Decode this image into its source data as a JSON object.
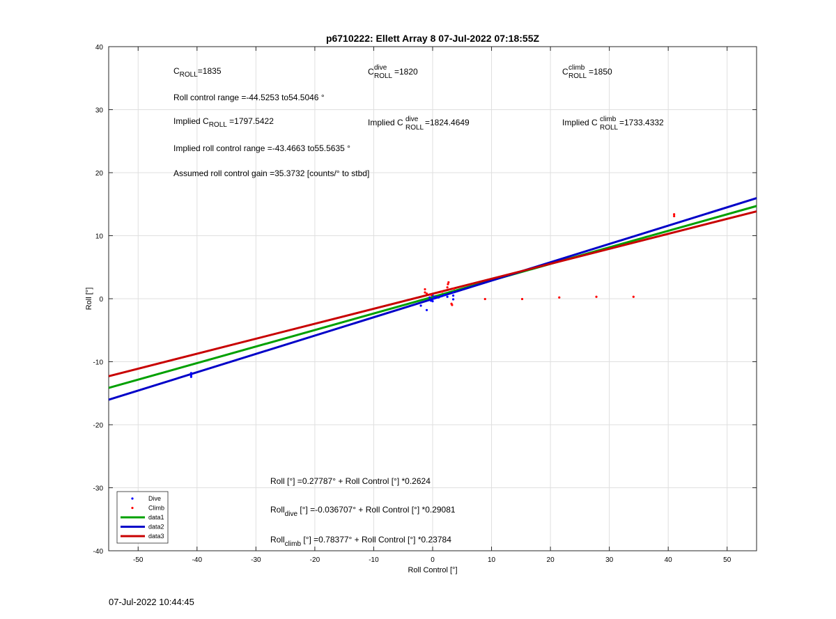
{
  "chart_data": {
    "type": "scatter",
    "title": "p6710222: Ellett Array 8 07-Jul-2022 07:18:55Z",
    "xlabel": "Roll Control [°]",
    "ylabel": "Roll [°]",
    "xlim": [
      -55,
      55
    ],
    "ylim": [
      -40,
      40
    ],
    "xticks": [
      -50,
      -40,
      -30,
      -20,
      -10,
      0,
      10,
      20,
      30,
      40,
      50
    ],
    "yticks": [
      -40,
      -30,
      -20,
      -10,
      0,
      10,
      20,
      30,
      40
    ],
    "grid": true,
    "legend_position": "bottom-left",
    "colors": {
      "dive": "#0000ff",
      "climb": "#ff0000",
      "data1": "#00a000",
      "data2": "#0000c8",
      "data3": "#c80000"
    },
    "series": [
      {
        "name": "Dive",
        "kind": "points",
        "points": [
          [
            -41,
            -12.2
          ],
          [
            -41,
            -11.8
          ],
          [
            -41,
            -12.4
          ],
          [
            -2,
            -1.1
          ],
          [
            -1,
            -1.8
          ],
          [
            -0.5,
            0.2
          ],
          [
            -0.3,
            -0.3
          ],
          [
            0,
            -0.4
          ],
          [
            0,
            0.5
          ],
          [
            0.2,
            0.1
          ],
          [
            0.5,
            0.3
          ],
          [
            1,
            0.2
          ],
          [
            1.5,
            0.4
          ],
          [
            2,
            0.6
          ],
          [
            2.5,
            0.3
          ],
          [
            3.5,
            0.5
          ],
          [
            3.5,
            1.0
          ],
          [
            3.5,
            -0.1
          ]
        ]
      },
      {
        "name": "Climb",
        "kind": "points",
        "points": [
          [
            -1.3,
            1.5
          ],
          [
            -1.3,
            1.0
          ],
          [
            -1,
            0.8
          ],
          [
            -0.2,
            0.6
          ],
          [
            1.6,
            1.1
          ],
          [
            2.5,
            1.8
          ],
          [
            2.6,
            2.3
          ],
          [
            2.7,
            2.6
          ],
          [
            3.2,
            -0.8
          ],
          [
            3.3,
            -1.0
          ],
          [
            3.6,
            1.6
          ],
          [
            8.9,
            -0.05
          ],
          [
            15.2,
            -0.05
          ],
          [
            21.5,
            0.2
          ],
          [
            27.8,
            0.3
          ],
          [
            34.1,
            0.3
          ],
          [
            41,
            13.1
          ],
          [
            41,
            13.4
          ]
        ]
      },
      {
        "name": "data1",
        "kind": "line",
        "intercept": 0.27787,
        "slope": 0.2624
      },
      {
        "name": "data2",
        "kind": "line",
        "intercept": -0.036707,
        "slope": 0.29081
      },
      {
        "name": "data3",
        "kind": "line",
        "intercept": 0.78377,
        "slope": 0.23784
      }
    ],
    "annotations": {
      "c_roll": {
        "base": "C",
        "sub": "ROLL",
        "value": "=1835"
      },
      "c_roll_dive": {
        "base": "C",
        "sup": "dive",
        "sub": "ROLL",
        "value": " =1820"
      },
      "c_roll_climb": {
        "base": "C",
        "sup": "climb",
        "sub": "ROLL",
        "value": " =1850"
      },
      "range_text": "Roll control range =-44.5253 to54.5046 °",
      "implied_c_roll": {
        "prefix": "Implied C",
        "sub": "ROLL",
        "value": " =1797.5422"
      },
      "implied_c_roll_dive": {
        "prefix": "Implied C",
        "sup": "dive",
        "sub": "ROLL",
        "value": " =1824.4649"
      },
      "implied_c_roll_climb": {
        "prefix": "Implied C",
        "sup": "climb",
        "sub": "ROLL",
        "value": " =1733.4332"
      },
      "implied_range_text": "Implied roll control range =-43.4663 to55.5635 °",
      "gain_text": "Assumed roll control gain =35.3732 [counts/° to stbd]",
      "eq_all": "Roll [°] =0.27787° + Roll Control [°] *0.2624",
      "eq_dive": {
        "base": "Roll",
        "sub": "dive",
        "rest": " [°] =-0.036707° + Roll Control [°] *0.29081"
      },
      "eq_climb": {
        "base": "Roll",
        "sub": "climb",
        "rest": " [°] =0.78377° + Roll Control [°] *0.23784"
      }
    }
  },
  "footer": {
    "timestamp": "07-Jul-2022 10:44:45"
  }
}
